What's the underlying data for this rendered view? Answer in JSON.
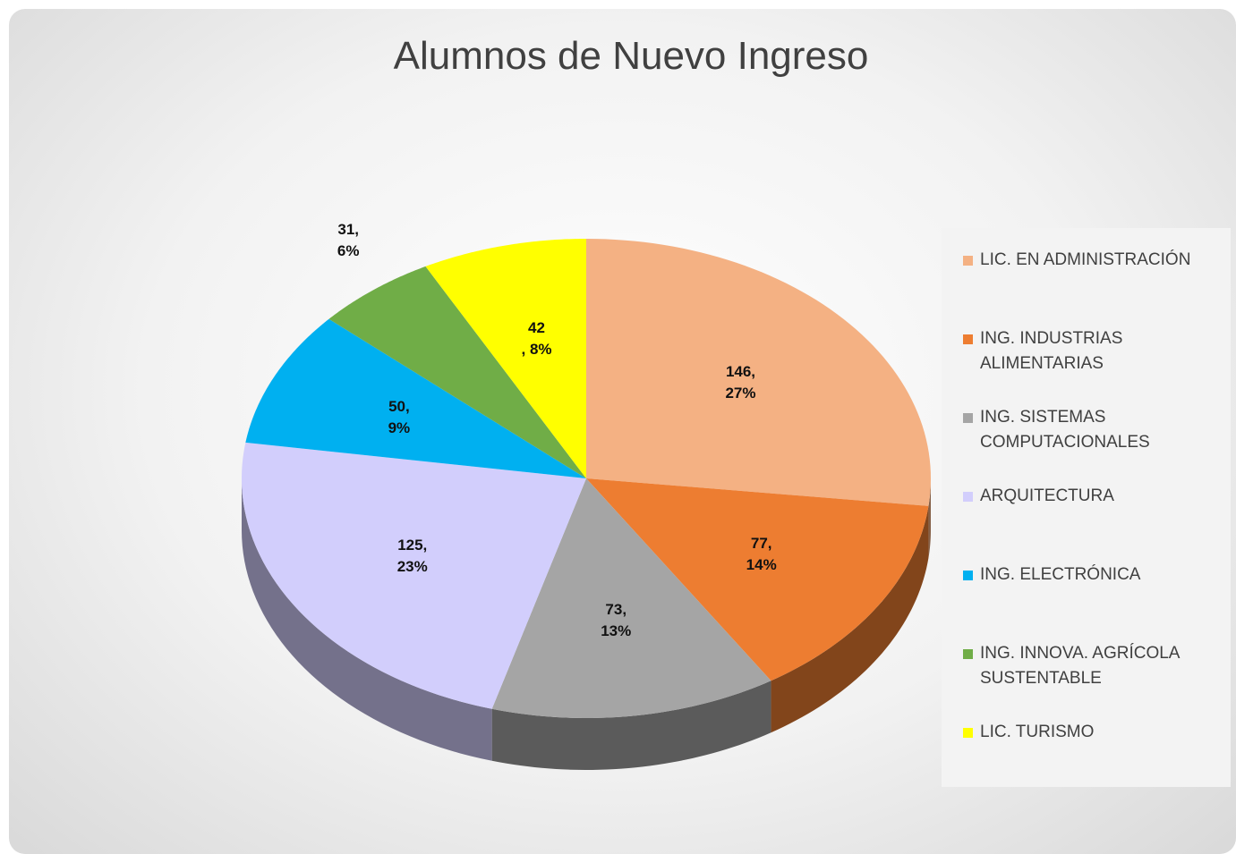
{
  "chart_data": {
    "type": "pie",
    "title": "Alumnos de Nuevo Ingreso",
    "categories": [
      "LIC. EN ADMINISTRACIÓN",
      "ING. INDUSTRIAS ALIMENTARIAS",
      "ING. SISTEMAS COMPUTACIONALES",
      "ARQUITECTURA",
      "ING. ELECTRÓNICA",
      "ING. INNOVA. AGRÍCOLA SUSTENTABLE",
      "LIC. TURISMO"
    ],
    "values": [
      146,
      77,
      73,
      125,
      50,
      31,
      42
    ],
    "value_labels": [
      "146,\n27%",
      "77,\n14%",
      "73,\n13%",
      "125,\n23%",
      "50,\n9%",
      "31,\n6%",
      "42\n, 8%"
    ],
    "colors": [
      "#f4b183",
      "#ed7d31",
      "#a5a5a5",
      "#d2cefc",
      "#00b0f0",
      "#70ad47",
      "#ffff00"
    ],
    "legend": "right"
  }
}
